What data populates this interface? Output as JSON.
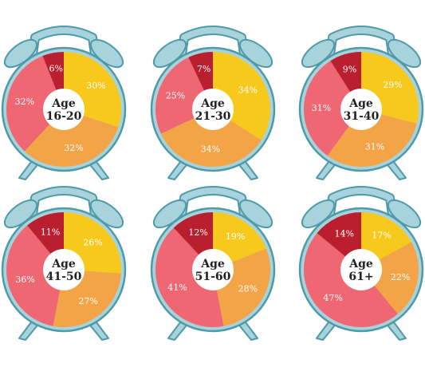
{
  "chart_data": {
    "type": "pie",
    "colors": {
      "yellow": "#f7c91c",
      "orange": "#f2a447",
      "pink": "#ee6773",
      "darkred": "#b91f2f",
      "clock_frame": "#a8d3dc",
      "clock_outline": "#4d9aa8",
      "center": "#ffffff"
    },
    "charts": [
      {
        "label_line1": "Age",
        "label_line2": "16-20",
        "slices": [
          {
            "color": "yellow",
            "value": 30,
            "label": "30%"
          },
          {
            "color": "orange",
            "value": 32,
            "label": "32%"
          },
          {
            "color": "pink",
            "value": 32,
            "label": "32%"
          },
          {
            "color": "darkred",
            "value": 6,
            "label": "6%"
          }
        ]
      },
      {
        "label_line1": "Age",
        "label_line2": "21-30",
        "slices": [
          {
            "color": "yellow",
            "value": 34,
            "label": "34%"
          },
          {
            "color": "orange",
            "value": 34,
            "label": "34%"
          },
          {
            "color": "pink",
            "value": 25,
            "label": "25%"
          },
          {
            "color": "darkred",
            "value": 7,
            "label": "7%"
          }
        ]
      },
      {
        "label_line1": "Age",
        "label_line2": "31-40",
        "slices": [
          {
            "color": "yellow",
            "value": 29,
            "label": "29%"
          },
          {
            "color": "orange",
            "value": 31,
            "label": "31%"
          },
          {
            "color": "pink",
            "value": 31,
            "label": "31%"
          },
          {
            "color": "darkred",
            "value": 9,
            "label": "9%"
          }
        ]
      },
      {
        "label_line1": "Age",
        "label_line2": "41-50",
        "slices": [
          {
            "color": "yellow",
            "value": 26,
            "label": "26%"
          },
          {
            "color": "orange",
            "value": 27,
            "label": "27%"
          },
          {
            "color": "pink",
            "value": 36,
            "label": "36%"
          },
          {
            "color": "darkred",
            "value": 11,
            "label": "11%"
          }
        ]
      },
      {
        "label_line1": "Age",
        "label_line2": "51-60",
        "slices": [
          {
            "color": "yellow",
            "value": 19,
            "label": "19%"
          },
          {
            "color": "orange",
            "value": 28,
            "label": "28%"
          },
          {
            "color": "pink",
            "value": 41,
            "label": "41%"
          },
          {
            "color": "darkred",
            "value": 12,
            "label": "12%"
          }
        ]
      },
      {
        "label_line1": "Age",
        "label_line2": "61+",
        "slices": [
          {
            "color": "yellow",
            "value": 17,
            "label": "17%"
          },
          {
            "color": "orange",
            "value": 22,
            "label": "22%"
          },
          {
            "color": "pink",
            "value": 47,
            "label": "47%"
          },
          {
            "color": "darkred",
            "value": 14,
            "label": "14%"
          }
        ]
      }
    ]
  }
}
